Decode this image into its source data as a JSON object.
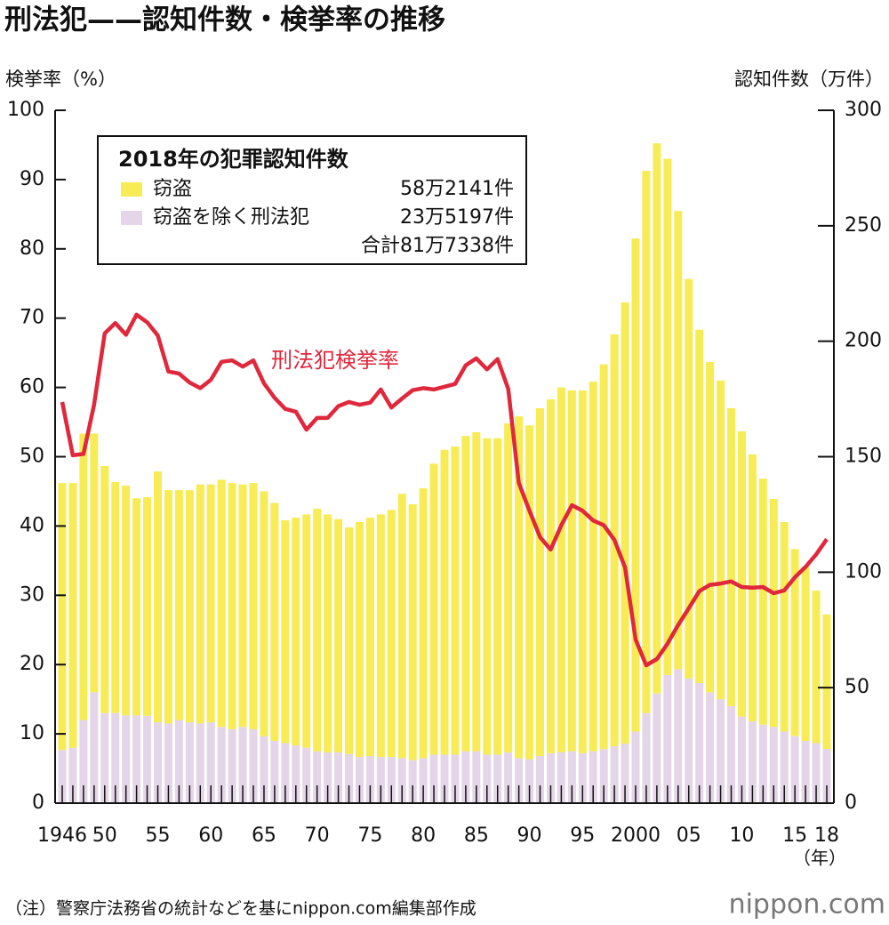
{
  "chart_data": {
    "type": "bar",
    "title": "刑法犯——認知件数・検挙率の推移",
    "y_label": "検挙率（%）",
    "y2_label": "認知件数（万件）",
    "x_unit": "（年）",
    "line_annotation": "刑法犯検挙率",
    "legend_title": "2018年の犯罪認知件数",
    "legend_notes": [
      "58万2141件",
      "23万5197件",
      "合計81万7338件"
    ],
    "note": "（注）警察庁法務省の統計などを基にnippon.com編集部作成",
    "logo": "nippon.com",
    "categories": [
      "1946",
      null,
      null,
      null,
      "50",
      null,
      null,
      null,
      null,
      "55",
      null,
      null,
      null,
      null,
      "60",
      null,
      null,
      null,
      null,
      "65",
      null,
      null,
      null,
      null,
      "70",
      null,
      null,
      null,
      null,
      "75",
      null,
      null,
      null,
      null,
      "80",
      null,
      null,
      null,
      null,
      "85",
      null,
      null,
      null,
      null,
      "90",
      null,
      null,
      null,
      null,
      "95",
      null,
      null,
      null,
      null,
      "2000",
      null,
      null,
      null,
      null,
      "05",
      null,
      null,
      null,
      null,
      "10",
      null,
      null,
      null,
      null,
      "15",
      null,
      null,
      "18"
    ],
    "ylim": [
      0,
      100
    ],
    "yticks": [
      0,
      10,
      20,
      30,
      40,
      50,
      60,
      70,
      80,
      90,
      100
    ],
    "y2lim": [
      0,
      300
    ],
    "y2ticks": [
      0,
      50,
      100,
      150,
      200,
      250,
      300
    ],
    "series": [
      {
        "name": "窃盗を除く刑法犯",
        "type": "bar",
        "axis": "y2",
        "color": "#e4d5e8",
        "values": [
          23,
          24,
          36,
          48,
          39,
          39,
          38,
          38,
          37.8,
          35,
          34.5,
          36,
          35,
          34.5,
          35,
          33,
          32,
          33,
          32,
          29,
          27,
          26,
          25,
          24,
          22.5,
          22,
          22,
          21.3,
          20,
          20.4,
          20,
          20,
          19.5,
          18.6,
          19.5,
          21,
          21,
          21,
          22.5,
          22.5,
          21,
          21,
          22,
          19.5,
          19,
          20.4,
          21.6,
          22,
          22.5,
          21.6,
          22.5,
          23.4,
          24.6,
          25.8,
          31,
          39,
          47.5,
          55.5,
          58,
          54,
          52,
          48,
          45,
          42,
          37.5,
          35.4,
          34,
          33,
          31,
          29,
          27,
          26,
          23.5197
        ]
      },
      {
        "name": "窃盗",
        "type": "bar",
        "axis": "y2",
        "color": "#f7ec55",
        "values": [
          115.6,
          114.6,
          124,
          112,
          107,
          100,
          99.5,
          94,
          94.7,
          108.6,
          101,
          99.5,
          100.5,
          103.5,
          103,
          107,
          106.6,
          105,
          106.6,
          106,
          103,
          96.5,
          98.6,
          101,
          105,
          103,
          101,
          98.1,
          101.7,
          103.2,
          105,
          107,
          114.5,
          110.8,
          116.8,
          126,
          132,
          133.4,
          136.5,
          138.1,
          137,
          137,
          142.4,
          148,
          144.6,
          150.6,
          153.2,
          158,
          156.2,
          157.1,
          160,
          166.6,
          178.4,
          191,
          213.5,
          234.8,
          238.2,
          223.5,
          198.4,
          173,
          153,
          143,
          138,
          129,
          123.5,
          115.6,
          106.5,
          98.7,
          90.7,
          81,
          75.4,
          66,
          58.2141
        ]
      },
      {
        "type": "line",
        "axis": "y",
        "color": "#e0283c",
        "values": [
          57.9,
          50.2,
          50.4,
          57.5,
          67.8,
          69.3,
          67.6,
          70.5,
          69.4,
          67.5,
          62.3,
          62,
          60.7,
          59.9,
          61.1,
          63.7,
          63.9,
          63,
          63.9,
          60.6,
          58.5,
          56.9,
          56.5,
          53.9,
          55.6,
          55.6,
          57.3,
          57.9,
          57.5,
          57.8,
          59.7,
          57.1,
          58.4,
          59.6,
          59.9,
          59.7,
          60.1,
          60.5,
          63.2,
          64.2,
          62.6,
          64.1,
          59.8,
          46.2,
          42.2,
          38.4,
          36.6,
          40.1,
          43,
          42.2,
          40.8,
          40.1,
          38,
          34,
          23.6,
          19.9,
          20.8,
          23,
          25.7,
          28.1,
          30.6,
          31.5,
          31.7,
          32,
          31.2,
          31.1,
          31.2,
          30.3,
          30.7,
          32.6,
          34.1,
          35.9,
          38.1
        ]
      }
    ]
  }
}
